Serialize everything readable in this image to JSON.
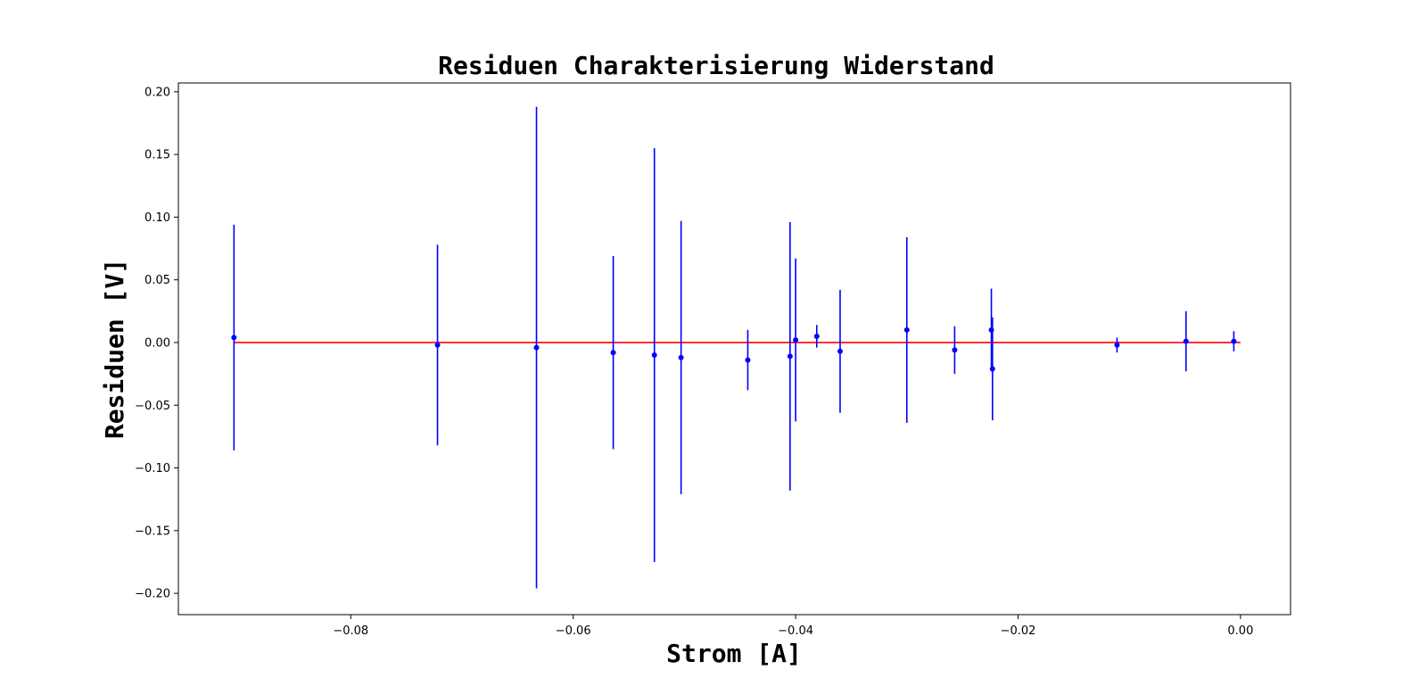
{
  "chart_data": {
    "type": "scatter",
    "title": "Residuen Charakterisierung Widerstand",
    "xlabel": "Strom [A]",
    "ylabel": "Residuen [V]",
    "xlim": [
      -0.0955,
      0.0045
    ],
    "ylim": [
      -0.217,
      0.207
    ],
    "xticks": [
      -0.08,
      -0.06,
      -0.04,
      -0.02,
      0.0
    ],
    "xtick_labels": [
      "−0.08",
      "−0.06",
      "−0.04",
      "−0.02",
      "0.00"
    ],
    "yticks": [
      -0.2,
      -0.15,
      -0.1,
      -0.05,
      0.0,
      0.05,
      0.1,
      0.15,
      0.2
    ],
    "ytick_labels": [
      "−0.20",
      "−0.15",
      "−0.10",
      "−0.05",
      "0.00",
      "0.05",
      "0.10",
      "0.15",
      "0.20"
    ],
    "grid": false,
    "colors": {
      "points": "#0000ff",
      "errorbars": "#0000ff",
      "zero_line": "#ff0000"
    },
    "zero_line": {
      "y": 0.0,
      "x_range": [
        -0.0905,
        0.0
      ]
    },
    "points": [
      {
        "x": -0.0905,
        "y": 0.004,
        "yerr": 0.09
      },
      {
        "x": -0.0722,
        "y": -0.002,
        "yerr": 0.08
      },
      {
        "x": -0.0633,
        "y": -0.004,
        "yerr": 0.192
      },
      {
        "x": -0.0564,
        "y": -0.008,
        "yerr": 0.077
      },
      {
        "x": -0.0527,
        "y": -0.01,
        "yerr": 0.165
      },
      {
        "x": -0.0503,
        "y": -0.012,
        "yerr": 0.109
      },
      {
        "x": -0.0443,
        "y": -0.014,
        "yerr": 0.024
      },
      {
        "x": -0.0405,
        "y": -0.011,
        "yerr": 0.107
      },
      {
        "x": -0.04,
        "y": 0.002,
        "yerr": 0.065
      },
      {
        "x": -0.0381,
        "y": 0.005,
        "yerr": 0.009
      },
      {
        "x": -0.036,
        "y": -0.007,
        "yerr": 0.049
      },
      {
        "x": -0.03,
        "y": 0.01,
        "yerr": 0.074
      },
      {
        "x": -0.0257,
        "y": -0.006,
        "yerr": 0.019
      },
      {
        "x": -0.0224,
        "y": 0.01,
        "yerr": 0.033
      },
      {
        "x": -0.0223,
        "y": -0.021,
        "yerr": 0.041
      },
      {
        "x": -0.0111,
        "y": -0.002,
        "yerr": 0.006
      },
      {
        "x": -0.0049,
        "y": 0.001,
        "yerr": 0.024
      },
      {
        "x": -0.0006,
        "y": 0.001,
        "yerr": 0.008
      }
    ]
  }
}
